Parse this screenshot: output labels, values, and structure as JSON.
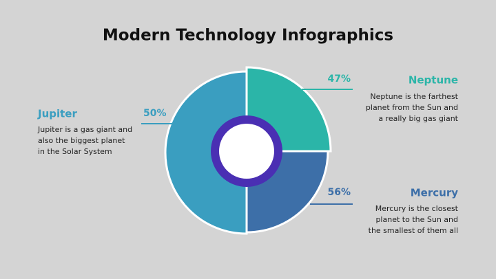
{
  "title": "Modern Technology Infographics",
  "items": [
    {
      "name": "Neptune",
      "percent": "47%",
      "description": [
        "Neptune is the farthest",
        "planet from the Sun and",
        "a really big gas giant"
      ]
    },
    {
      "name": "Mercury",
      "percent": "56%",
      "description": [
        "Mercury is the closest",
        "planet to the Sun and",
        "the smallest of them all"
      ]
    },
    {
      "name": "Jupiter",
      "percent": "50%",
      "description": [
        "Jupiter is a gas giant and",
        "also the biggest planet",
        "in the Solar System"
      ]
    }
  ]
}
